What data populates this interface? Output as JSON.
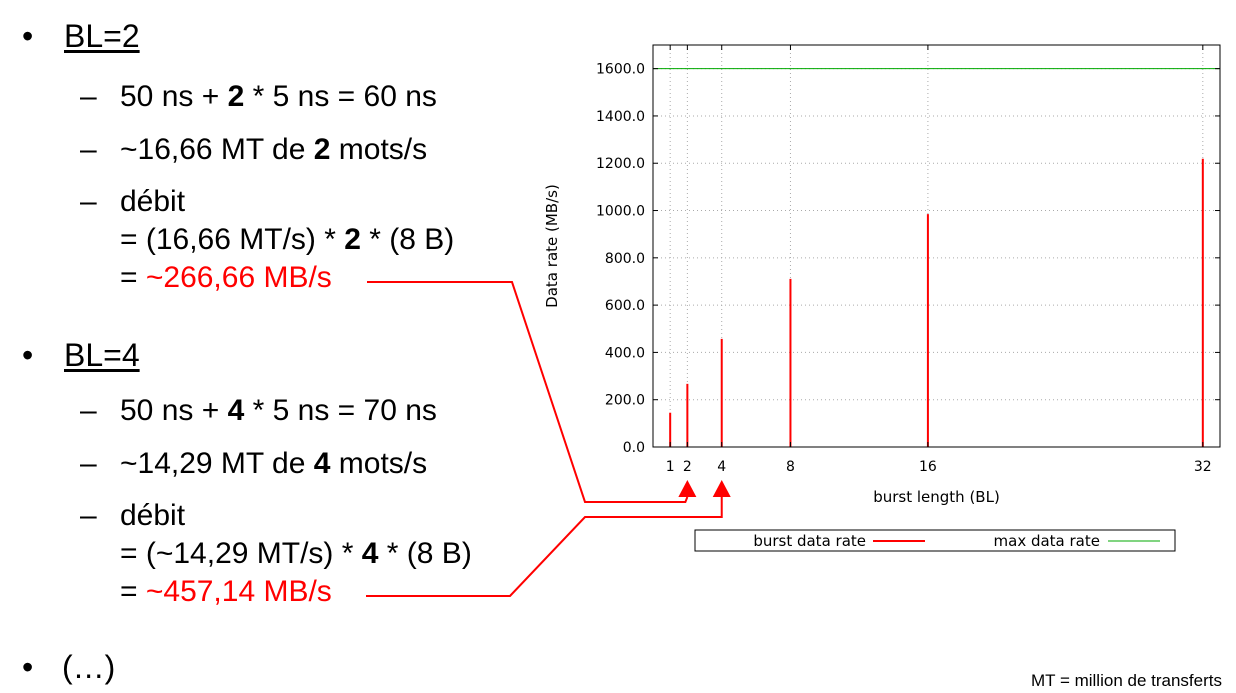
{
  "slide": {
    "bl2": {
      "label": "BL=2",
      "line1": {
        "a": "50 ns + ",
        "b": "2",
        "c": " * 5 ns = 60 ns"
      },
      "line2": {
        "a": "~16,66 MT de ",
        "b": "2",
        "c": " mots/s"
      },
      "line3": "débit",
      "line4": {
        "a": "= (16,66 MT/s) * ",
        "b": "2",
        "c": " * (8 B)"
      },
      "line5": {
        "a": "= ",
        "red": "~266,66 MB/s"
      }
    },
    "bl4": {
      "label": "BL=4",
      "line1": {
        "a": "50 ns + ",
        "b": "4",
        "c": " * 5 ns = 70 ns"
      },
      "line2": {
        "a": "~14,29 MT de ",
        "b": "4",
        "c": " mots/s"
      },
      "line3": "débit",
      "line4": {
        "a": "= (~14,29 MT/s) * ",
        "b": "4",
        "c": " * (8 B)"
      },
      "line5": {
        "a": "= ",
        "red": "~457,14 MB/s"
      }
    },
    "bullet_char": "•",
    "dash_char": "–",
    "ellipsis": "(…)",
    "footnote": "MT = million de transferts"
  },
  "chart_data": {
    "type": "bar",
    "xlabel": "burst length (BL)",
    "ylabel": "Data rate (MB/s)",
    "ylim": [
      0,
      1700
    ],
    "xlim": [
      0,
      33
    ],
    "yticks": [
      0,
      200,
      400,
      600,
      800,
      1000,
      1200,
      1400,
      1600
    ],
    "ytick_labels": [
      "0.0",
      "200.0",
      "400.0",
      "600.0",
      "800.0",
      "1000.0",
      "1200.0",
      "1400.0",
      "1600.0"
    ],
    "xticks": [
      1,
      2,
      4,
      8,
      16,
      32
    ],
    "xtick_labels": [
      "1",
      "2",
      "4",
      "8",
      "16",
      "32"
    ],
    "grid": true,
    "series": [
      {
        "name": "burst data rate",
        "type": "impulse",
        "color": "#ff0000",
        "x": [
          1,
          2,
          4,
          8,
          16,
          32
        ],
        "y": [
          145,
          267,
          457,
          711,
          985,
          1219
        ]
      },
      {
        "name": "max data rate",
        "type": "line",
        "color": "#00aa00",
        "y": 1600
      }
    ],
    "legend_position": "bottom"
  }
}
